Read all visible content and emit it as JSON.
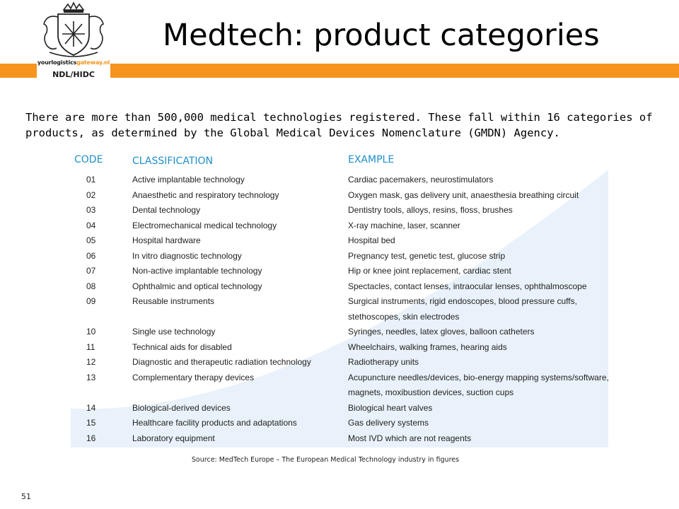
{
  "header": {
    "title": "Medtech: product categories",
    "logo": {
      "site_prefix": "yourlogistics",
      "site_suffix": "gateway.nl",
      "tag": "NDL/HIDC"
    },
    "accent_color": "#f7941d"
  },
  "intro": "There are more than 500,000 medical technologies registered. These fall within 16 categories of products, as determined by the Global Medical Devices Nomenclature (GMDN) Agency.",
  "table": {
    "headers": {
      "code": "CODE",
      "classification": "CLASSIFICATION",
      "example": "EXAMPLE"
    },
    "header_color": "#1f8fc9",
    "rows": [
      {
        "code": "01",
        "classification": "Active implantable technology",
        "example": [
          "Cardiac pacemakers, neurostimulators"
        ]
      },
      {
        "code": "02",
        "classification": "Anaesthetic and respiratory technology",
        "example": [
          "Oxygen mask, gas delivery unit, anaesthesia breathing circuit"
        ]
      },
      {
        "code": "03",
        "classification": "Dental technology",
        "example": [
          "Dentistry tools, alloys, resins, floss, brushes"
        ]
      },
      {
        "code": "04",
        "classification": "Electromechanical medical technology",
        "example": [
          "X-ray machine, laser, scanner"
        ]
      },
      {
        "code": "05",
        "classification": "Hospital hardware",
        "example": [
          "Hospital bed"
        ]
      },
      {
        "code": "06",
        "classification": "In vitro diagnostic technology",
        "example": [
          "Pregnancy test, genetic test, glucose strip"
        ]
      },
      {
        "code": "07",
        "classification": "Non-active implantable technology",
        "example": [
          "Hip or knee joint replacement, cardiac stent"
        ]
      },
      {
        "code": "08",
        "classification": "Ophthalmic and optical technology",
        "example": [
          "Spectacles, contact lenses, intraocular lenses, ophthalmoscope"
        ]
      },
      {
        "code": "09",
        "classification": "Reusable instruments",
        "example": [
          "Surgical instruments, rigid endoscopes, blood pressure cuffs,",
          "stethoscopes, skin electrodes"
        ]
      },
      {
        "code": "10",
        "classification": "Single use technology",
        "example": [
          "Syringes, needles, latex gloves, balloon catheters"
        ]
      },
      {
        "code": "11",
        "classification": "Technical aids for disabled",
        "example": [
          "Wheelchairs, walking frames, hearing aids"
        ]
      },
      {
        "code": "12",
        "classification": "Diagnostic and therapeutic radiation technology",
        "example": [
          "Radiotherapy units"
        ]
      },
      {
        "code": "13",
        "classification": "Complementary therapy devices",
        "example": [
          "Acupuncture needles/devices, bio-energy mapping systems/software,",
          "magnets, moxibustion devices, suction cups"
        ]
      },
      {
        "code": "14",
        "classification": "Biological-derived devices",
        "example": [
          "Biological heart valves"
        ]
      },
      {
        "code": "15",
        "classification": "Healthcare facility products and adaptations",
        "example": [
          "Gas delivery systems"
        ]
      },
      {
        "code": "16",
        "classification": "Laboratory equipment",
        "example": [
          "Most IVD which are not reagents"
        ]
      }
    ]
  },
  "source": "Source: MedTech Europe – The European Medical Technology industry in figures",
  "page_number": "51"
}
